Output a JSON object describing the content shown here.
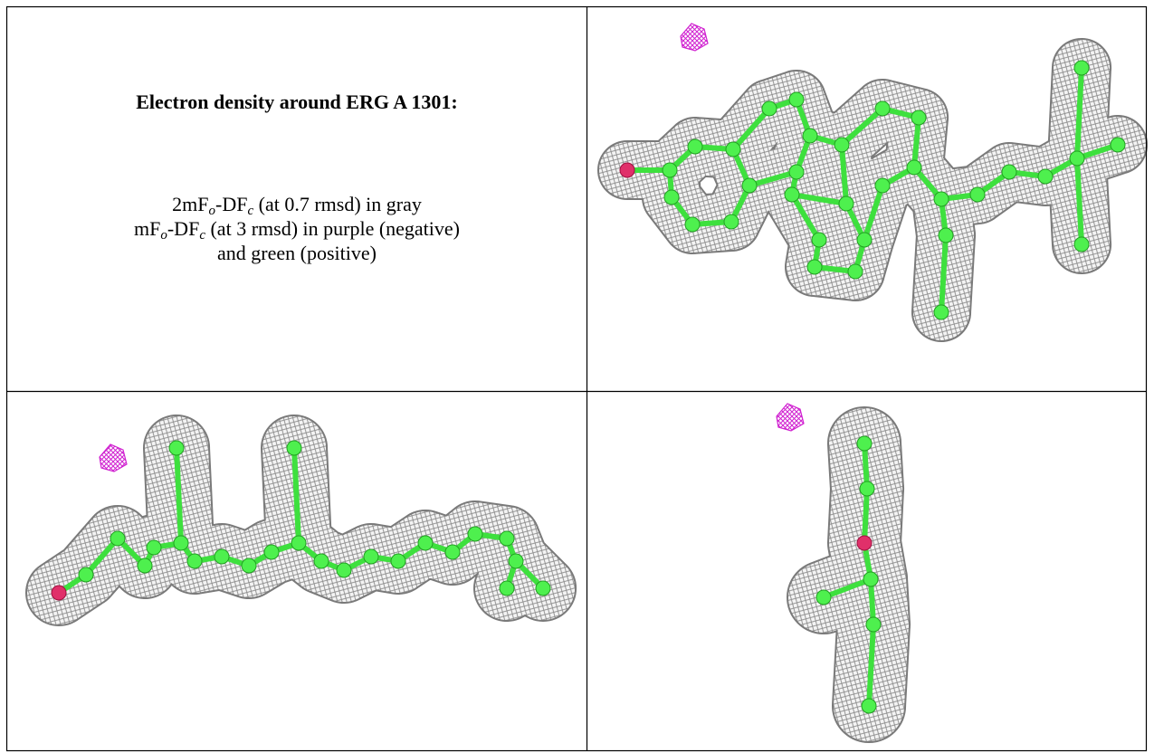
{
  "caption": {
    "title": "Electron density around ERG A 1301:",
    "lines": [
      [
        "2mF",
        "o",
        "-DF",
        "c",
        " (at 0.7 rmsd) in gray"
      ],
      [
        "mF",
        "o",
        "-DF",
        "c",
        " (at 3 rmsd) in purple (negative)"
      ],
      [
        "and green (positive)"
      ]
    ]
  }
}
